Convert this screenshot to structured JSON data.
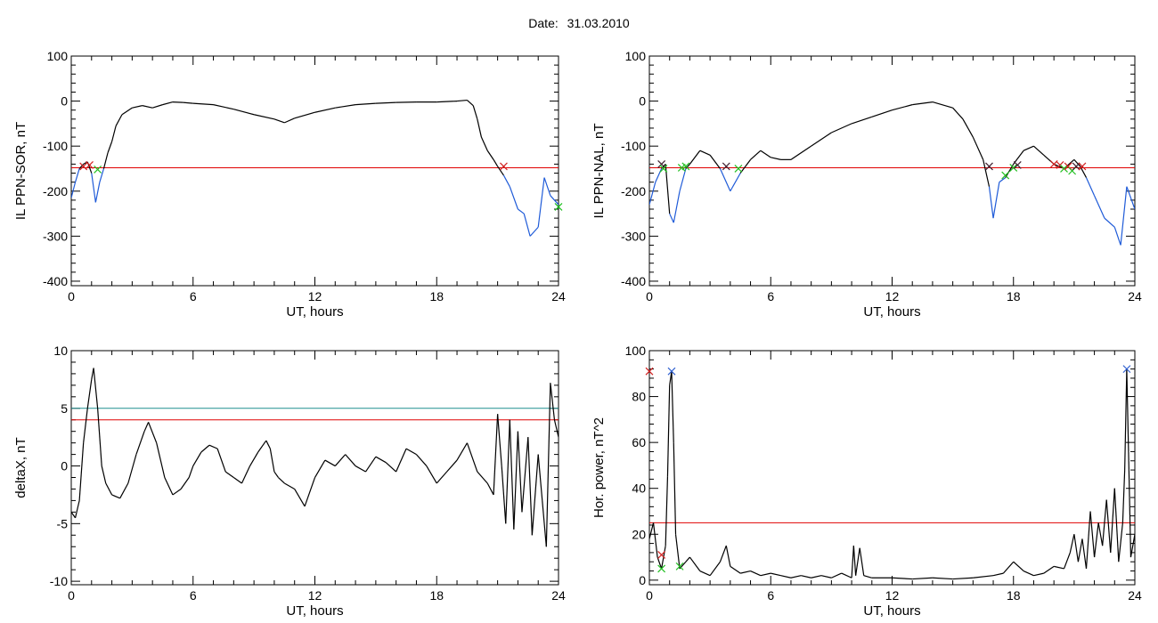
{
  "header": {
    "date_label": "Date:",
    "date_value": "31.03.2010"
  },
  "colors": {
    "black": "#000000",
    "threshold_red": "#e00000",
    "threshold_teal": "#1f8f8f",
    "below_blue": "#1f5bd8",
    "marker_green": "#22c022",
    "marker_red": "#d02020",
    "marker_dark": "#402030",
    "marker_blue": "#3060d0"
  },
  "chart_data": [
    {
      "type": "line",
      "title": "",
      "xlabel": "UT, hours",
      "ylabel": "IL PPN-SOR, nT",
      "xlim": [
        0,
        24
      ],
      "ylim": [
        -410,
        100
      ],
      "xticks": [
        0,
        6,
        12,
        18,
        24
      ],
      "yticks": [
        -400,
        -300,
        -200,
        -100,
        0,
        100
      ],
      "threshold_lines": [
        {
          "y": -148,
          "color": "#e00000"
        }
      ],
      "below_threshold_color": "#1f5bd8",
      "series": [
        {
          "x": [
            0,
            0.2,
            0.4,
            0.6,
            0.8,
            1.0,
            1.2,
            1.4,
            1.6,
            1.8,
            2.0,
            2.2,
            2.5,
            3.0,
            3.5,
            4.0,
            4.5,
            5.0,
            5.5,
            6.0,
            7.0,
            8.0,
            9.0,
            10.0,
            10.5,
            11.0,
            12.0,
            13.0,
            14.0,
            15.0,
            16.0,
            17.0,
            18.0,
            19.0,
            19.5,
            19.8,
            20.0,
            20.2,
            20.5,
            20.8,
            21.0,
            21.3,
            21.6,
            22.0,
            22.3,
            22.6,
            23.0,
            23.3,
            23.6,
            24.0
          ],
          "y": [
            -215,
            -180,
            -150,
            -140,
            -135,
            -160,
            -225,
            -180,
            -150,
            -115,
            -90,
            -55,
            -30,
            -15,
            -10,
            -15,
            -8,
            -2,
            -3,
            -5,
            -8,
            -18,
            -30,
            -40,
            -48,
            -38,
            -25,
            -15,
            -8,
            -5,
            -3,
            -2,
            -2,
            0,
            2,
            -10,
            -40,
            -80,
            -110,
            -130,
            -145,
            -165,
            -190,
            -240,
            -250,
            -300,
            -280,
            -170,
            -210,
            -230
          ]
        }
      ],
      "markers": [
        {
          "x": 0.6,
          "y": -145,
          "symbol": "x",
          "color": "#d02020"
        },
        {
          "x": 0.9,
          "y": -142,
          "symbol": "x",
          "color": "#d02020"
        },
        {
          "x": 1.3,
          "y": -152,
          "symbol": "x",
          "color": "#22c022"
        },
        {
          "x": 21.3,
          "y": -145,
          "symbol": "x",
          "color": "#d02020"
        },
        {
          "x": 24.0,
          "y": -235,
          "symbol": "x",
          "color": "#22c022"
        }
      ]
    },
    {
      "type": "line",
      "title": "",
      "xlabel": "UT, hours",
      "ylabel": "IL PPN-NAL, nT",
      "xlim": [
        0,
        24
      ],
      "ylim": [
        -410,
        100
      ],
      "xticks": [
        0,
        6,
        12,
        18,
        24
      ],
      "yticks": [
        -400,
        -300,
        -200,
        -100,
        0,
        100
      ],
      "threshold_lines": [
        {
          "y": -148,
          "color": "#e00000"
        }
      ],
      "below_threshold_color": "#1f5bd8",
      "series": [
        {
          "x": [
            0,
            0.3,
            0.6,
            0.8,
            1.0,
            1.2,
            1.5,
            1.8,
            2.0,
            2.5,
            3.0,
            3.5,
            4.0,
            4.5,
            5.0,
            5.5,
            6.0,
            6.5,
            7.0,
            8.0,
            9.0,
            10.0,
            11.0,
            12.0,
            13.0,
            14.0,
            15.0,
            15.5,
            16.0,
            16.5,
            16.8,
            17.0,
            17.3,
            17.6,
            18.0,
            18.5,
            19.0,
            19.5,
            20.0,
            20.5,
            21.0,
            21.3,
            21.6,
            22.0,
            22.5,
            23.0,
            23.3,
            23.6,
            24.0
          ],
          "y": [
            -230,
            -180,
            -150,
            -140,
            -250,
            -270,
            -200,
            -150,
            -140,
            -110,
            -120,
            -150,
            -200,
            -160,
            -130,
            -110,
            -125,
            -130,
            -130,
            -100,
            -70,
            -50,
            -35,
            -20,
            -8,
            -2,
            -15,
            -40,
            -80,
            -130,
            -190,
            -260,
            -180,
            -170,
            -140,
            -110,
            -100,
            -120,
            -140,
            -150,
            -130,
            -145,
            -170,
            -210,
            -260,
            -280,
            -320,
            -190,
            -240
          ]
        }
      ],
      "markers": [
        {
          "x": 0.6,
          "y": -140,
          "symbol": "x",
          "color": "#402030"
        },
        {
          "x": 0.7,
          "y": -150,
          "symbol": "x",
          "color": "#22c022"
        },
        {
          "x": 1.6,
          "y": -148,
          "symbol": "x",
          "color": "#22c022"
        },
        {
          "x": 1.8,
          "y": -145,
          "symbol": "x",
          "color": "#22c022"
        },
        {
          "x": 3.8,
          "y": -145,
          "symbol": "x",
          "color": "#402030"
        },
        {
          "x": 4.4,
          "y": -150,
          "symbol": "x",
          "color": "#22c022"
        },
        {
          "x": 16.8,
          "y": -145,
          "symbol": "x",
          "color": "#402030"
        },
        {
          "x": 17.6,
          "y": -165,
          "symbol": "x",
          "color": "#22c022"
        },
        {
          "x": 18.0,
          "y": -148,
          "symbol": "x",
          "color": "#22c022"
        },
        {
          "x": 18.2,
          "y": -142,
          "symbol": "x",
          "color": "#402030"
        },
        {
          "x": 20.0,
          "y": -140,
          "symbol": "x",
          "color": "#d02020"
        },
        {
          "x": 20.3,
          "y": -142,
          "symbol": "x",
          "color": "#d02020"
        },
        {
          "x": 20.5,
          "y": -150,
          "symbol": "x",
          "color": "#22c022"
        },
        {
          "x": 20.7,
          "y": -145,
          "symbol": "x",
          "color": "#d02020"
        },
        {
          "x": 20.9,
          "y": -155,
          "symbol": "x",
          "color": "#22c022"
        },
        {
          "x": 21.1,
          "y": -145,
          "symbol": "x",
          "color": "#402030"
        },
        {
          "x": 21.4,
          "y": -145,
          "symbol": "x",
          "color": "#d02020"
        }
      ]
    },
    {
      "type": "line",
      "title": "",
      "xlabel": "UT, hours",
      "ylabel": "deltaX, nT",
      "xlim": [
        0,
        24
      ],
      "ylim": [
        -10.3,
        10
      ],
      "xticks": [
        0,
        6,
        12,
        18,
        24
      ],
      "yticks": [
        -10,
        -5,
        0,
        5,
        10
      ],
      "threshold_lines": [
        {
          "y": 5,
          "color": "#1f8f8f"
        },
        {
          "y": 4,
          "color": "#e00000"
        }
      ],
      "series": [
        {
          "x": [
            0,
            0.2,
            0.4,
            0.6,
            0.8,
            1.0,
            1.1,
            1.3,
            1.5,
            1.7,
            2.0,
            2.4,
            2.8,
            3.2,
            3.6,
            3.8,
            4.2,
            4.6,
            5.0,
            5.4,
            5.8,
            6.0,
            6.4,
            6.8,
            7.2,
            7.6,
            8.0,
            8.4,
            8.8,
            9.2,
            9.6,
            9.8,
            10.0,
            10.2,
            10.5,
            11.0,
            11.5,
            12.0,
            12.5,
            13.0,
            13.5,
            14.0,
            14.5,
            15.0,
            15.5,
            16.0,
            16.5,
            17.0,
            17.5,
            18.0,
            18.5,
            19.0,
            19.5,
            20.0,
            20.5,
            20.8,
            21.0,
            21.2,
            21.4,
            21.6,
            21.8,
            22.0,
            22.2,
            22.5,
            22.7,
            23.0,
            23.2,
            23.4,
            23.6,
            23.8,
            24.0
          ],
          "y": [
            -4,
            -4.5,
            -3,
            2,
            5,
            7.5,
            8.5,
            5,
            0,
            -1.5,
            -2.5,
            -2.8,
            -1.5,
            1,
            3,
            3.8,
            2,
            -1,
            -2.5,
            -2,
            -1,
            0,
            1.2,
            1.8,
            1.5,
            -0.5,
            -1,
            -1.5,
            0,
            1.2,
            2.2,
            1.5,
            -0.5,
            -1,
            -1.5,
            -2,
            -3.5,
            -1,
            0.5,
            0,
            1,
            0,
            -0.5,
            0.8,
            0.3,
            -0.5,
            1.5,
            1,
            0,
            -1.5,
            -0.5,
            0.5,
            2,
            -0.5,
            -1.5,
            -2.5,
            4.5,
            0,
            -5,
            4,
            -5.5,
            3,
            -4,
            2.5,
            -6,
            1,
            -3,
            -7,
            7.2,
            4,
            2.5
          ]
        }
      ],
      "markers": []
    },
    {
      "type": "line",
      "title": "",
      "xlabel": "UT, hours",
      "ylabel": "Hor. power, nT^2",
      "xlim": [
        0,
        24
      ],
      "ylim": [
        -2,
        100
      ],
      "xticks": [
        0,
        6,
        12,
        18,
        24
      ],
      "yticks": [
        0,
        20,
        40,
        60,
        80,
        100
      ],
      "threshold_lines": [
        {
          "y": 25,
          "color": "#e00000"
        }
      ],
      "series": [
        {
          "x": [
            0,
            0.2,
            0.4,
            0.6,
            0.8,
            0.9,
            1.0,
            1.1,
            1.2,
            1.3,
            1.5,
            1.8,
            2.0,
            2.5,
            3.0,
            3.5,
            3.8,
            4.0,
            4.5,
            5.0,
            5.5,
            6.0,
            6.5,
            7.0,
            7.5,
            8.0,
            8.5,
            9.0,
            9.5,
            10.0,
            10.1,
            10.2,
            10.4,
            10.6,
            11.0,
            12.0,
            13.0,
            14.0,
            15.0,
            16.0,
            17.0,
            17.5,
            18.0,
            18.5,
            19.0,
            19.5,
            20.0,
            20.5,
            20.8,
            21.0,
            21.2,
            21.4,
            21.6,
            21.8,
            22.0,
            22.2,
            22.4,
            22.6,
            22.8,
            23.0,
            23.2,
            23.4,
            23.5,
            23.6,
            23.8,
            24.0
          ],
          "y": [
            18,
            25,
            10,
            5,
            15,
            45,
            85,
            91,
            60,
            20,
            5,
            8,
            10,
            4,
            2,
            8,
            15,
            6,
            3,
            4,
            2,
            3,
            2,
            1,
            2,
            1,
            2,
            1,
            3,
            1,
            15,
            2,
            14,
            2,
            1,
            1,
            0.5,
            1,
            0.5,
            1,
            2,
            3,
            8,
            4,
            2,
            3,
            6,
            5,
            12,
            20,
            8,
            18,
            5,
            30,
            10,
            25,
            15,
            35,
            12,
            40,
            8,
            25,
            48,
            92,
            10,
            20
          ]
        }
      ],
      "markers": [
        {
          "x": 0.0,
          "y": 91,
          "symbol": "x",
          "color": "#d02020"
        },
        {
          "x": 0.6,
          "y": 11,
          "symbol": "x",
          "color": "#d02020"
        },
        {
          "x": 0.6,
          "y": 5,
          "symbol": "x",
          "color": "#22c022"
        },
        {
          "x": 1.1,
          "y": 91,
          "symbol": "x",
          "color": "#3060d0"
        },
        {
          "x": 1.5,
          "y": 6,
          "symbol": "x",
          "color": "#22c022"
        },
        {
          "x": 23.6,
          "y": 92,
          "symbol": "x",
          "color": "#3060d0"
        }
      ]
    }
  ]
}
